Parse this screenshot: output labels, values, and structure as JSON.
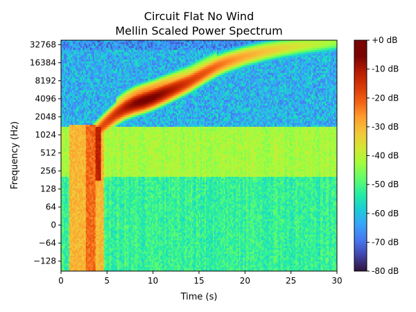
{
  "chart_data": {
    "type": "heatmap",
    "title": [
      "Circuit Flat No Wind",
      "Mellin Scaled Power Spectrum"
    ],
    "xlabel": "Time (s)",
    "ylabel": "Frequency (Hz)",
    "xlim": [
      0,
      30
    ],
    "x_ticks": [
      0,
      5,
      10,
      15,
      20,
      25,
      30
    ],
    "y_ticks": [
      -128,
      -64,
      0,
      64,
      128,
      256,
      512,
      1024,
      2048,
      4096,
      8192,
      16384,
      32768
    ],
    "y_tick_labels": [
      "−128",
      "−64",
      "0",
      "64",
      "128",
      "256",
      "512",
      "1024",
      "2048",
      "4096",
      "8192",
      "16384",
      "32768"
    ],
    "colormap": "turbo",
    "colorbar": {
      "range_db": [
        -80,
        0
      ],
      "ticks": [
        0,
        -10,
        -20,
        -30,
        -40,
        -50,
        -60,
        -70,
        -80
      ],
      "tick_labels": [
        "+0 dB",
        "-10 dB",
        "-20 dB",
        "-30 dB",
        "-40 dB",
        "-50 dB",
        "-60 dB",
        "-70 dB",
        "-80 dB"
      ]
    },
    "features": {
      "chirp_ridge": {
        "time_s": [
          3.5,
          5,
          6,
          7,
          8,
          9,
          10,
          11,
          12,
          13,
          14,
          15,
          16,
          17,
          18,
          19,
          20,
          22,
          24,
          26,
          28,
          30
        ],
        "freq_hz": [
          1024,
          1700,
          2300,
          2900,
          3400,
          3800,
          4300,
          5000,
          5800,
          6800,
          8000,
          9800,
          12000,
          14500,
          16800,
          18800,
          21000,
          25000,
          28500,
          31500,
          34000,
          36500
        ],
        "level_db": [
          -20,
          -17,
          -14,
          -10,
          -6,
          -4,
          -5,
          -7,
          -10,
          -13,
          -16,
          -18,
          -20,
          -22,
          -24,
          -26,
          -28,
          -31,
          -34,
          -37,
          -40,
          -43
        ]
      },
      "broadband_band": {
        "freq_range_hz": [
          1400,
          200
        ],
        "level_db": -42
      },
      "low_band": {
        "freq_range_hz": [
          200,
          -200
        ],
        "level_db": -52
      },
      "onset_burst": {
        "time_range_s": [
          1,
          5
        ],
        "level_db": -30
      },
      "high_band_background_db": -62
    }
  }
}
